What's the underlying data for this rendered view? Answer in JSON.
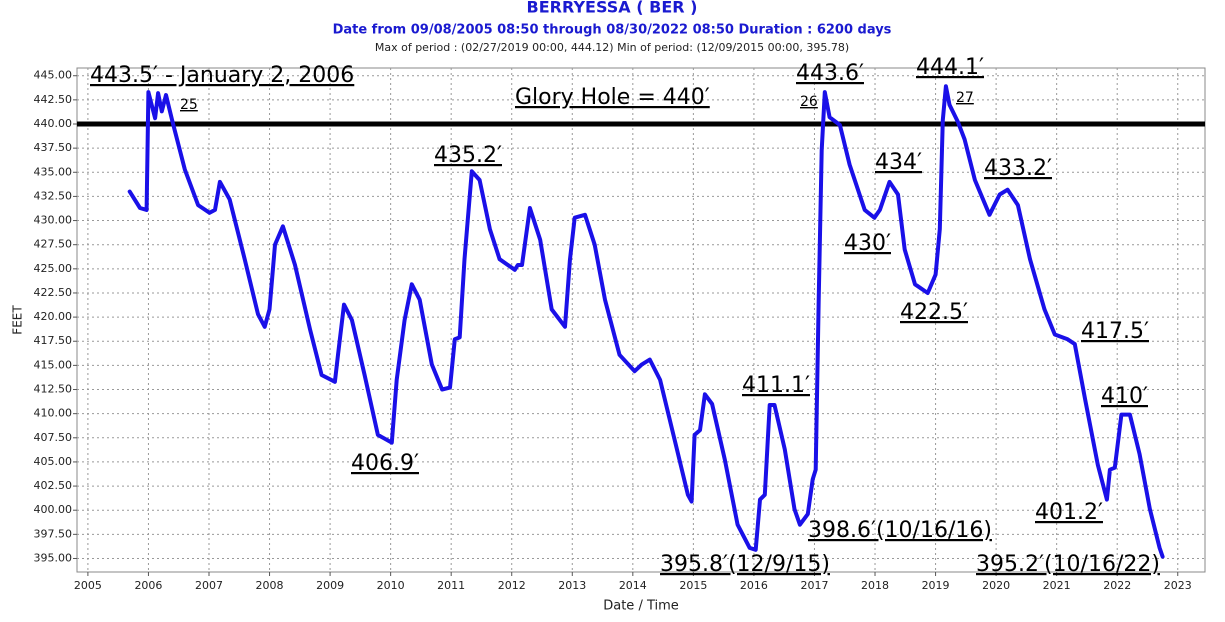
{
  "chart_data": {
    "type": "line",
    "title": "BERRYESSA ( BER )",
    "subtitle": "Date from 09/08/2005 08:50 through 08/30/2022 08:50 Duration : 6200 days",
    "period_note": "Max of period : (02/27/2019 00:00, 444.12)  Min of period: (12/09/2015 00:00,  395.78)",
    "y_label": "FEET",
    "x_label": "Date / Time",
    "color": "#1a10e8",
    "grid": true,
    "xlim": [
      2004.82,
      2023.45
    ],
    "ylim": [
      393.6,
      445.8
    ],
    "xticks": [
      2005,
      2006,
      2007,
      2008,
      2009,
      2010,
      2011,
      2012,
      2013,
      2014,
      2015,
      2016,
      2017,
      2018,
      2019,
      2020,
      2021,
      2022,
      2023
    ],
    "yticks": [
      {
        "value": 395,
        "label": "395.00"
      },
      {
        "value": 397.5,
        "label": "397.50"
      },
      {
        "value": 400,
        "label": "400.00"
      },
      {
        "value": 402.5,
        "label": "402.50"
      },
      {
        "value": 405,
        "label": "405.00"
      },
      {
        "value": 407.5,
        "label": "407.50"
      },
      {
        "value": 410,
        "label": "410.00"
      },
      {
        "value": 412.5,
        "label": "412.50"
      },
      {
        "value": 415,
        "label": "415.00"
      },
      {
        "value": 417.5,
        "label": "417.50"
      },
      {
        "value": 420,
        "label": "420.00"
      },
      {
        "value": 422.5,
        "label": "422.50"
      },
      {
        "value": 425,
        "label": "425.00"
      },
      {
        "value": 427.5,
        "label": "427.50"
      },
      {
        "value": 430,
        "label": "430.00"
      },
      {
        "value": 432.5,
        "label": "432.50"
      },
      {
        "value": 435,
        "label": "435.00"
      },
      {
        "value": 437.5,
        "label": "437.50"
      },
      {
        "value": 440,
        "label": "440.00"
      },
      {
        "value": 442.5,
        "label": "442.50"
      },
      {
        "value": 445,
        "label": "445.00"
      }
    ],
    "reference_line": {
      "value": 440,
      "label": "Glory Hole = 440′"
    },
    "annotations": [
      "443.5′ - January 2, 2006",
      "25",
      "443.6′",
      "26",
      "444.1′",
      "27",
      "435.2′",
      "434′",
      "433.2′",
      "430′",
      "422.5′",
      "417.5′",
      "410′",
      "401.2′",
      "406.9′",
      "411.1′",
      "398.6′(10/16/16)",
      "395.8′(12/9/15)",
      "395.2′(10/16/22)"
    ],
    "x": [
      2005.69,
      2005.86,
      2005.97,
      2006.0,
      2006.11,
      2006.16,
      2006.22,
      2006.29,
      2006.39,
      2006.6,
      2006.82,
      2007.01,
      2007.1,
      2007.18,
      2007.34,
      2007.59,
      2007.81,
      2007.92,
      2008.0,
      2008.09,
      2008.22,
      2008.42,
      2008.67,
      2008.86,
      2009.08,
      2009.13,
      2009.23,
      2009.36,
      2009.57,
      2009.79,
      2010.02,
      2010.1,
      2010.23,
      2010.35,
      2010.48,
      2010.68,
      2010.85,
      2010.98,
      2011.06,
      2011.14,
      2011.22,
      2011.34,
      2011.47,
      2011.64,
      2011.8,
      2012.05,
      2012.1,
      2012.17,
      2012.3,
      2012.47,
      2012.66,
      2012.88,
      2012.96,
      2013.04,
      2013.21,
      2013.37,
      2013.54,
      2013.78,
      2014.03,
      2014.15,
      2014.28,
      2014.45,
      2014.69,
      2014.91,
      2014.97,
      2015.02,
      2015.11,
      2015.19,
      2015.31,
      2015.52,
      2015.73,
      2015.93,
      2016.03,
      2016.1,
      2016.18,
      2016.26,
      2016.34,
      2016.51,
      2016.67,
      2016.76,
      2016.89,
      2016.97,
      2017.02,
      2017.07,
      2017.12,
      2017.17,
      2017.25,
      2017.42,
      2017.58,
      2017.83,
      2017.99,
      2018.08,
      2018.24,
      2018.38,
      2018.49,
      2018.66,
      2018.87,
      2019.0,
      2019.07,
      2019.12,
      2019.17,
      2019.23,
      2019.37,
      2019.48,
      2019.65,
      2019.89,
      2020.06,
      2020.19,
      2020.36,
      2020.56,
      2020.8,
      2020.97,
      2021.18,
      2021.3,
      2021.47,
      2021.68,
      2021.83,
      2021.88,
      2021.96,
      2022.07,
      2022.21,
      2022.37,
      2022.54,
      2022.7,
      2022.75
    ],
    "values": [
      433.0,
      431.3,
      431.1,
      443.3,
      440.6,
      443.2,
      441.3,
      443.0,
      440.4,
      435.3,
      431.6,
      430.8,
      431.1,
      434.0,
      432.2,
      426.0,
      420.3,
      419.0,
      420.8,
      427.5,
      429.4,
      425.4,
      418.7,
      414.0,
      413.3,
      416.1,
      421.3,
      419.7,
      414.0,
      407.8,
      407.0,
      413.5,
      419.7,
      423.4,
      421.8,
      415.1,
      412.5,
      412.7,
      417.7,
      417.9,
      426.0,
      435.1,
      434.2,
      429.1,
      426.0,
      424.9,
      425.4,
      425.4,
      431.3,
      428.0,
      420.8,
      419.0,
      425.9,
      430.3,
      430.6,
      427.5,
      421.8,
      416.1,
      414.4,
      415.1,
      415.6,
      413.5,
      407.3,
      401.6,
      400.9,
      407.8,
      408.3,
      412.0,
      411.0,
      405.2,
      398.5,
      396.1,
      395.9,
      401.1,
      401.6,
      410.9,
      410.9,
      406.3,
      400.1,
      398.5,
      399.6,
      403.2,
      404.2,
      421.8,
      437.3,
      443.3,
      440.7,
      439.9,
      435.8,
      431.1,
      430.3,
      431.1,
      434.0,
      432.7,
      427.0,
      423.4,
      422.5,
      424.4,
      429.1,
      440.4,
      443.9,
      442.0,
      440.2,
      438.4,
      434.2,
      430.6,
      432.7,
      433.2,
      431.6,
      426.0,
      420.8,
      418.2,
      417.7,
      417.2,
      411.5,
      404.7,
      401.1,
      404.2,
      404.4,
      409.9,
      409.9,
      405.8,
      400.1,
      396.1,
      395.2
    ]
  }
}
